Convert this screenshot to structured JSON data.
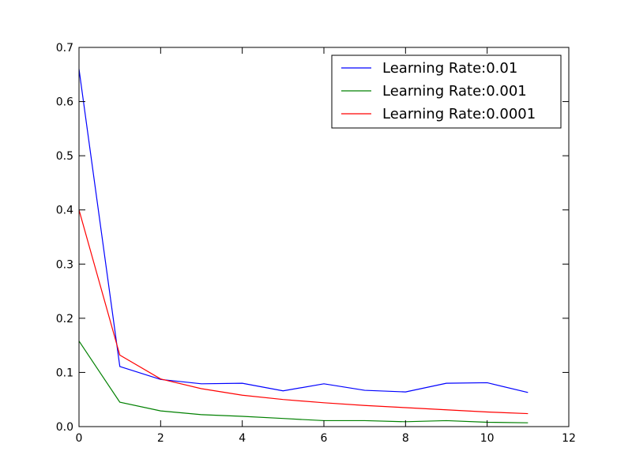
{
  "chart_data": {
    "type": "line",
    "xlim": [
      0,
      12
    ],
    "ylim": [
      0.0,
      0.7
    ],
    "xticks": [
      0,
      2,
      4,
      6,
      8,
      10,
      12
    ],
    "yticks": [
      0.0,
      0.1,
      0.2,
      0.3,
      0.4,
      0.5,
      0.6,
      0.7
    ],
    "xtick_labels": [
      "0",
      "2",
      "4",
      "6",
      "8",
      "10",
      "12"
    ],
    "ytick_labels": [
      "0.0",
      "0.1",
      "0.2",
      "0.3",
      "0.4",
      "0.5",
      "0.6",
      "0.7"
    ],
    "grid": false,
    "legend_position": "top-right",
    "x": [
      0,
      1,
      2,
      3,
      4,
      5,
      6,
      7,
      8,
      9,
      10,
      11
    ],
    "series": [
      {
        "name": "Learning Rate:0.01",
        "color": "#0000ff",
        "values": [
          0.66,
          0.111,
          0.087,
          0.079,
          0.08,
          0.066,
          0.079,
          0.067,
          0.064,
          0.08,
          0.081,
          0.063
        ]
      },
      {
        "name": "Learning Rate:0.001",
        "color": "#008000",
        "values": [
          0.158,
          0.045,
          0.029,
          0.022,
          0.019,
          0.015,
          0.011,
          0.011,
          0.009,
          0.011,
          0.008,
          0.007
        ]
      },
      {
        "name": "Learning Rate:0.0001",
        "color": "#ff0000",
        "values": [
          0.4,
          0.132,
          0.088,
          0.07,
          0.058,
          0.05,
          0.044,
          0.039,
          0.035,
          0.031,
          0.027,
          0.024
        ]
      }
    ]
  }
}
